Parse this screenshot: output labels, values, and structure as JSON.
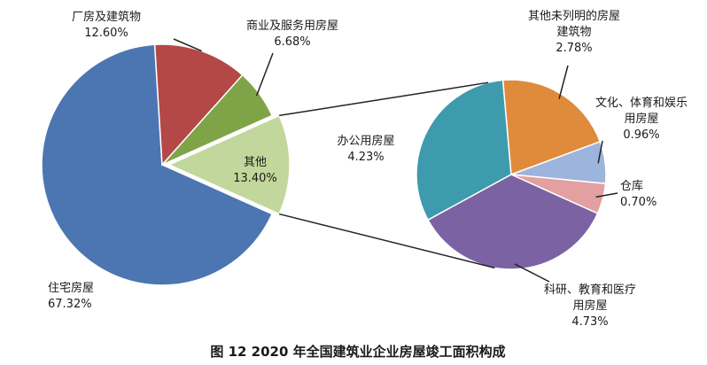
{
  "chart_data": {
    "type": "pie",
    "title": "图 12    2020 年全国建筑业企业房屋竣工面积构成",
    "main_pie": {
      "slices": [
        {
          "label": "住宅房屋",
          "value": 67.32,
          "value_text": "67.32%",
          "color": "#4b76b1"
        },
        {
          "label": "厂房及建筑物",
          "value": 12.6,
          "value_text": "12.60%",
          "color": "#b34846"
        },
        {
          "label": "商业及服务用房屋",
          "value": 6.68,
          "value_text": "6.68%",
          "color": "#7fa447"
        },
        {
          "label": "其他",
          "value": 13.4,
          "value_text": "13.40%",
          "color": "#c2d79b"
        }
      ],
      "exploded_slice": "其他"
    },
    "detail_pie": {
      "of": "其他",
      "slices": [
        {
          "label": "办公用房屋",
          "value": 4.23,
          "value_text": "4.23%",
          "color": "#3e9aad"
        },
        {
          "label": "其他未列明的房屋建筑物",
          "label_lines": [
            "其他未列明的房屋",
            "建筑物"
          ],
          "value": 2.78,
          "value_text": "2.78%",
          "color": "#e08a3c"
        },
        {
          "label": "文化、体育和娱乐用房屋",
          "label_lines": [
            "文化、体育和娱乐",
            "用房屋"
          ],
          "value": 0.96,
          "value_text": "0.96%",
          "color": "#9db4dc"
        },
        {
          "label": "仓库",
          "value": 0.7,
          "value_text": "0.70%",
          "color": "#e2a0a0"
        },
        {
          "label": "科研、教育和医疗用房屋",
          "label_lines": [
            "科研、教育和医疗",
            "用房屋"
          ],
          "value": 4.73,
          "value_text": "4.73%",
          "color": "#7b62a3"
        }
      ]
    }
  }
}
